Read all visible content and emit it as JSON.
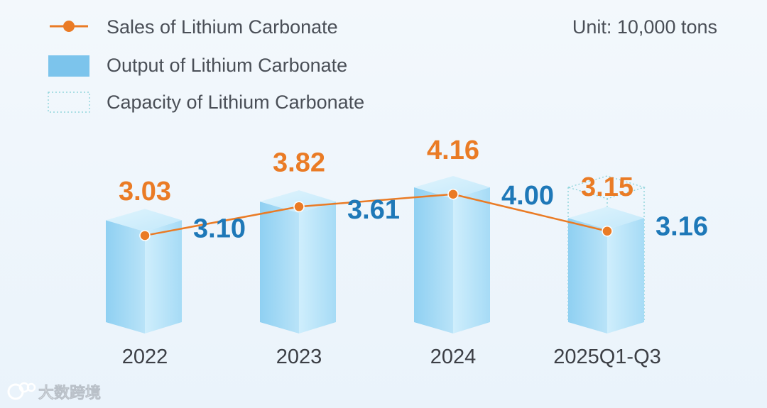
{
  "chart_data": {
    "type": "bar",
    "unit": "Unit: 10,000 tons",
    "categories": [
      "2022",
      "2023",
      "2024",
      "2025Q1-Q3"
    ],
    "series": [
      {
        "name": "Sales of Lithium Carbonate",
        "kind": "line",
        "values": [
          3.03,
          3.82,
          4.16,
          3.15
        ],
        "color": "#ea7b25"
      },
      {
        "name": "Output of Lithium Carbonate",
        "kind": "bar",
        "values": [
          3.1,
          3.61,
          4.0,
          3.16
        ],
        "color": "#7cc4ec"
      },
      {
        "name": "Capacity of Lithium Carbonate",
        "kind": "bar-outline",
        "values": [
          null,
          null,
          null,
          4.0
        ],
        "color": "#7fcfd6"
      }
    ],
    "sales_labels": [
      "3.03",
      "3.82",
      "4.16",
      "3.15"
    ],
    "output_labels": [
      "3.10",
      "3.61",
      "4.00",
      "3.16"
    ]
  },
  "watermark": "大数跨境"
}
